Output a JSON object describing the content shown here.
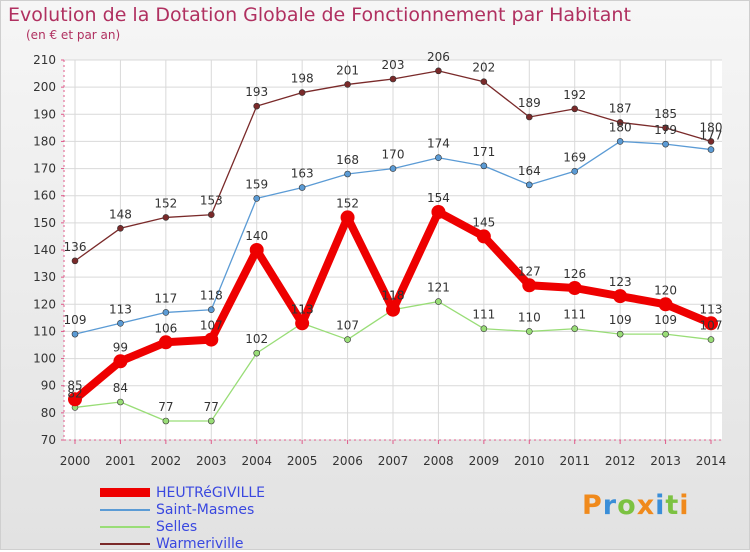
{
  "title": "Evolution de la Dotation Globale de Fonctionnement par Habitant",
  "subtitle": "(en € et par an)",
  "logo_text": "Proxiti",
  "logo_colors": [
    "#f08a1c",
    "#3a8ed8",
    "#7cc242",
    "#f08a1c",
    "#3a8ed8",
    "#7cc242",
    "#f08a1c"
  ],
  "chart_data": {
    "type": "line",
    "x": [
      "2000",
      "2001",
      "2002",
      "2003",
      "2004",
      "2005",
      "2006",
      "2007",
      "2008",
      "2009",
      "2010",
      "2011",
      "2012",
      "2013",
      "2014"
    ],
    "ylim": [
      70,
      210
    ],
    "yticks": [
      70,
      80,
      90,
      100,
      110,
      120,
      130,
      140,
      150,
      160,
      170,
      180,
      190,
      200,
      210
    ],
    "grid": true,
    "legend_position": "bottom-left",
    "series": [
      {
        "name": "HEUTRéGIVILLE",
        "color": "#ee0000",
        "values": [
          85,
          99,
          106,
          107,
          140,
          113,
          152,
          118,
          154,
          145,
          127,
          126,
          123,
          120,
          113
        ]
      },
      {
        "name": "Saint-Masmes",
        "color": "#5b9bd5",
        "values": [
          109,
          113,
          117,
          118,
          159,
          163,
          168,
          170,
          174,
          171,
          164,
          169,
          180,
          179,
          177
        ]
      },
      {
        "name": "Selles",
        "color": "#99dd77",
        "values": [
          82,
          84,
          77,
          77,
          102,
          113,
          107,
          118,
          121,
          111,
          110,
          111,
          109,
          109,
          107
        ]
      },
      {
        "name": "Warmeriville",
        "color": "#7a2a2a",
        "values": [
          136,
          148,
          152,
          153,
          193,
          198,
          201,
          203,
          206,
          202,
          189,
          192,
          187,
          185,
          180
        ]
      }
    ]
  }
}
